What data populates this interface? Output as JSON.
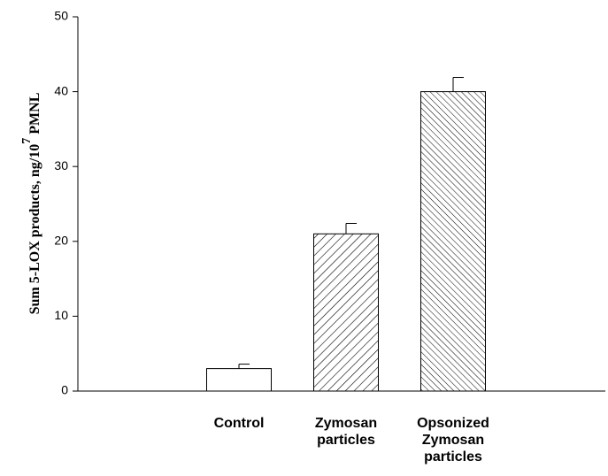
{
  "chart_data": {
    "type": "bar",
    "y_label": {
      "text": "Sum 5-LOX products, ng/10",
      "superscript": "7",
      "suffix": "PMNL"
    },
    "categories": [
      "Control",
      "Zymosan particles",
      "Opsonized Zymosan particles"
    ],
    "values": [
      3,
      21,
      40
    ],
    "errors": [
      0.6,
      1.4,
      1.9
    ],
    "colors": [
      "#ffffff",
      "#ffffff",
      "#ffffff"
    ],
    "hatch": [
      "none",
      "/",
      "\\"
    ],
    "ylim": [
      0,
      50
    ],
    "yticks": [
      0,
      10,
      20,
      30,
      40,
      50
    ],
    "grid": false
  }
}
